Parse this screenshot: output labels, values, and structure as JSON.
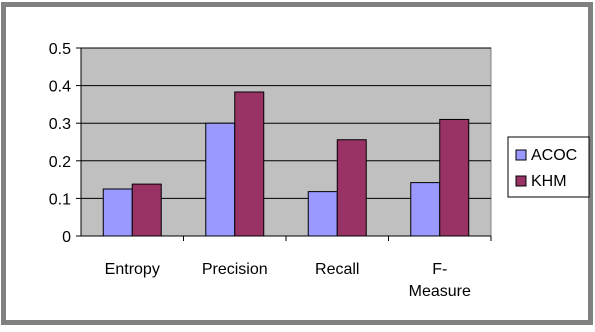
{
  "chart_data": {
    "type": "bar",
    "title": "",
    "xlabel": "",
    "ylabel": "",
    "categories": [
      "Entropy",
      "Precision",
      "Recall",
      "F-\nMeasure"
    ],
    "series": [
      {
        "name": "ACOC",
        "values": [
          0.125,
          0.3,
          0.118,
          0.142
        ]
      },
      {
        "name": "KHM",
        "values": [
          0.138,
          0.383,
          0.256,
          0.31
        ]
      }
    ],
    "ylim": [
      0,
      0.5
    ],
    "yticks": [
      "0",
      "0.1",
      "0.2",
      "0.3",
      "0.4",
      "0.5"
    ],
    "grid": "horizontal",
    "legend_position": "right",
    "colors": {
      "ACOC": "#9999ff",
      "KHM": "#993366",
      "plot_background": "#c0c0c0",
      "frame_border": "#808080",
      "gridline": "#000000"
    }
  }
}
